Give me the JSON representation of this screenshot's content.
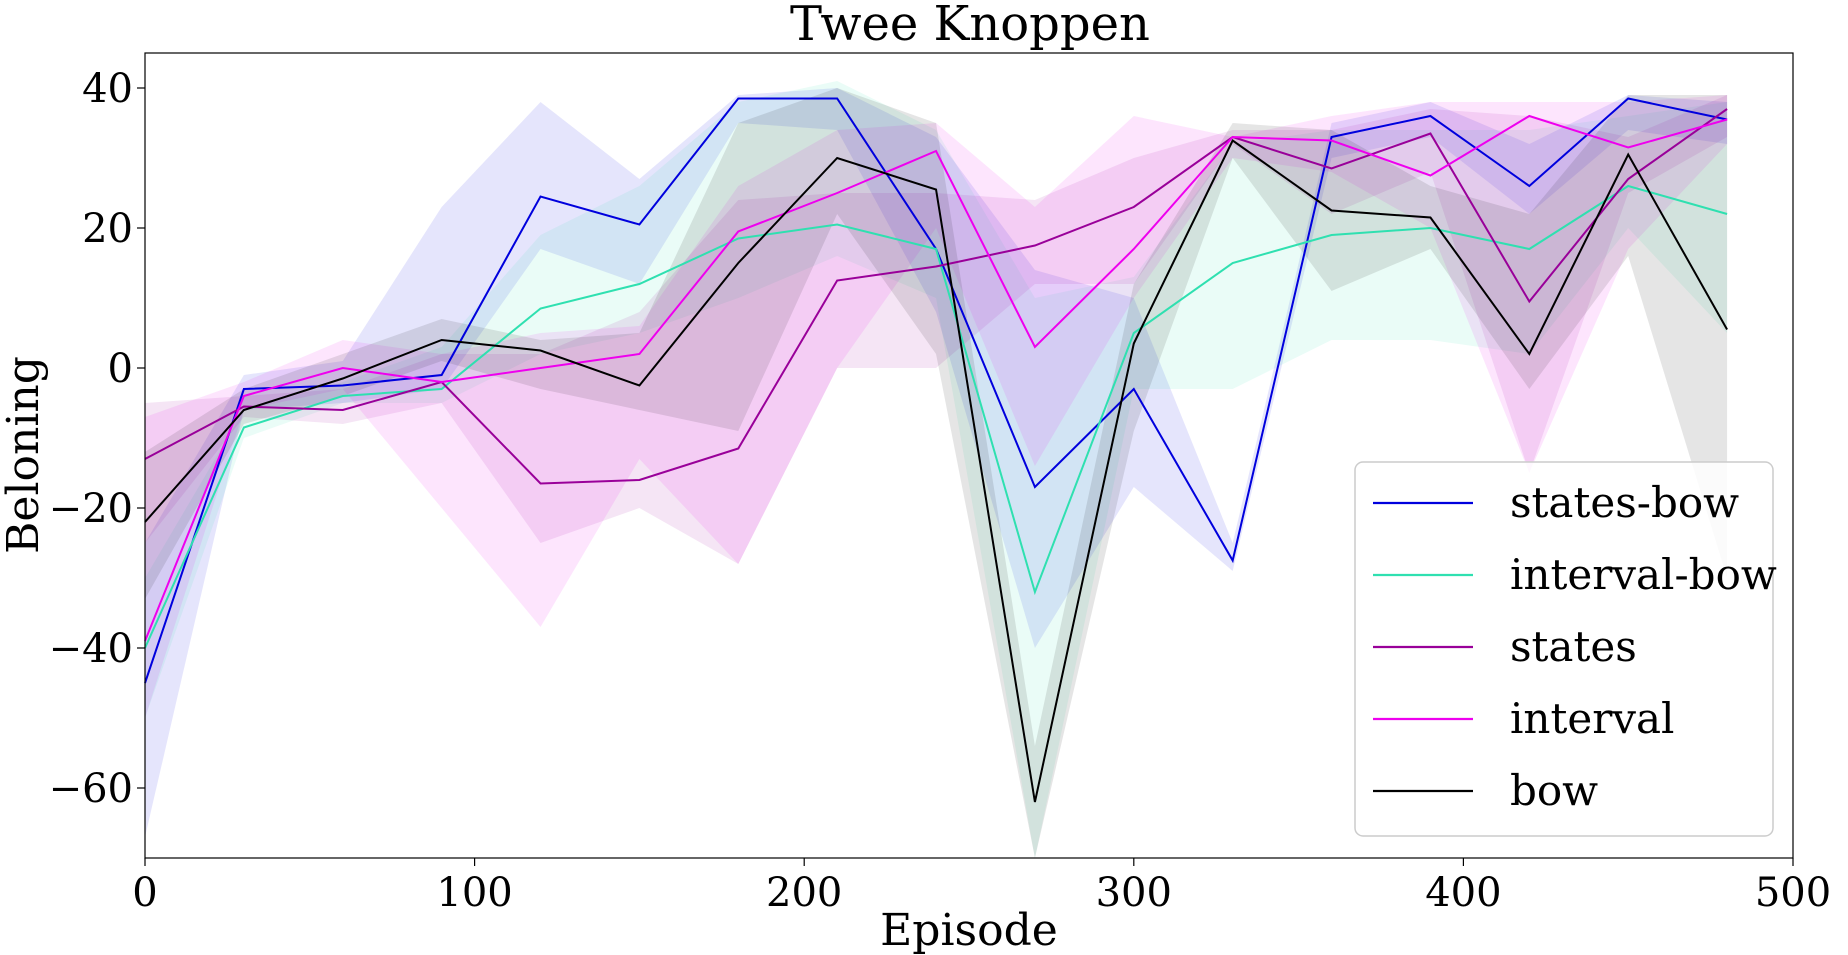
{
  "chart_data": {
    "type": "line",
    "title": "Twee Knoppen",
    "xlabel": "Episode",
    "ylabel": "Beloning",
    "xlim": [
      0,
      500
    ],
    "ylim": [
      -70,
      45
    ],
    "xticks": [
      0,
      100,
      200,
      300,
      400,
      500
    ],
    "xtick_labels": [
      "0",
      "100",
      "200",
      "300",
      "400",
      "500"
    ],
    "yticks": [
      -60,
      -40,
      -20,
      0,
      20,
      40
    ],
    "ytick_labels": [
      "−60",
      "−40",
      "−20",
      "0",
      "20",
      "40"
    ],
    "grid": false,
    "legend_position": "lower-right",
    "x": [
      0,
      30,
      60,
      90,
      120,
      150,
      180,
      210,
      240,
      270,
      300,
      330,
      360,
      390,
      420,
      450,
      480
    ],
    "series": [
      {
        "name": "states-bow",
        "color": "#0000dd",
        "values": [
          -45,
          -3,
          -2.5,
          -1,
          24.5,
          20.5,
          38.5,
          38.5,
          17,
          -17,
          -3,
          -27.5,
          33,
          36,
          26,
          38.5,
          35.5
        ],
        "lower": [
          -67,
          -6,
          -5,
          -3,
          17,
          12,
          35,
          34,
          8,
          -40,
          -17,
          -29,
          30,
          33,
          22,
          34,
          32
        ],
        "upper": [
          -25,
          -1,
          1,
          23,
          38,
          27,
          39,
          40,
          33,
          14,
          10,
          -25,
          35,
          38,
          32,
          39,
          38
        ]
      },
      {
        "name": "interval-bow",
        "color": "#2fe0b0",
        "values": [
          -40,
          -8.5,
          -4,
          -3,
          8.5,
          12,
          18.5,
          20.5,
          17,
          -32,
          5,
          15,
          19,
          20,
          17,
          26,
          22
        ],
        "lower": [
          -50,
          -10,
          -5,
          -5,
          2,
          5,
          10,
          16,
          10,
          -70,
          -3,
          -3,
          4,
          4,
          2,
          20,
          5
        ],
        "upper": [
          -30,
          -6,
          -2,
          3,
          19,
          26,
          38,
          41,
          34,
          10,
          13,
          32,
          34,
          34,
          34,
          36,
          38
        ]
      },
      {
        "name": "states",
        "color": "#990099",
        "values": [
          -13,
          -5.5,
          -6,
          -2,
          -16.5,
          -16,
          -11.5,
          12.5,
          14.5,
          17.5,
          23,
          33,
          28.5,
          33.5,
          9.5,
          27,
          37
        ],
        "lower": [
          -25,
          -7,
          -8,
          -5,
          -25,
          -20,
          -28,
          0,
          0,
          12,
          12,
          32,
          22,
          28,
          -15,
          25,
          33
        ],
        "upper": [
          -5,
          -4,
          -3,
          2,
          2,
          8,
          24,
          25,
          25,
          24,
          30,
          34,
          34,
          37,
          36,
          33,
          39
        ]
      },
      {
        "name": "interval",
        "color": "#ee00ee",
        "values": [
          -39,
          -4,
          0,
          -2,
          0,
          2,
          19.5,
          25,
          31,
          3,
          17,
          33,
          32.5,
          27.5,
          36,
          31.5,
          35.5
        ],
        "lower": [
          -50,
          -6,
          -3,
          -20,
          -37,
          -13,
          -28,
          0,
          20,
          -14,
          10,
          30,
          28,
          20,
          -15,
          17,
          32
        ],
        "upper": [
          -7,
          -2,
          4,
          2,
          5,
          6,
          26,
          34,
          35,
          23,
          36,
          33,
          36,
          38,
          38,
          38,
          39
        ]
      },
      {
        "name": "bow",
        "color": "#000000",
        "values": [
          -22,
          -6,
          -1.5,
          4,
          2.5,
          -2.5,
          15,
          30,
          25.5,
          -62,
          3.5,
          32.5,
          22.5,
          21.5,
          2,
          30.5,
          5.5
        ],
        "lower": [
          -33,
          -8,
          -4,
          1,
          -3,
          -6,
          -9,
          22,
          2,
          -70,
          -9,
          30,
          11,
          17,
          -3,
          16,
          -30
        ],
        "upper": [
          -12,
          -3,
          2,
          7,
          4,
          5,
          35,
          40,
          35,
          -54,
          12,
          35,
          34,
          26,
          22,
          39,
          39
        ]
      }
    ]
  }
}
